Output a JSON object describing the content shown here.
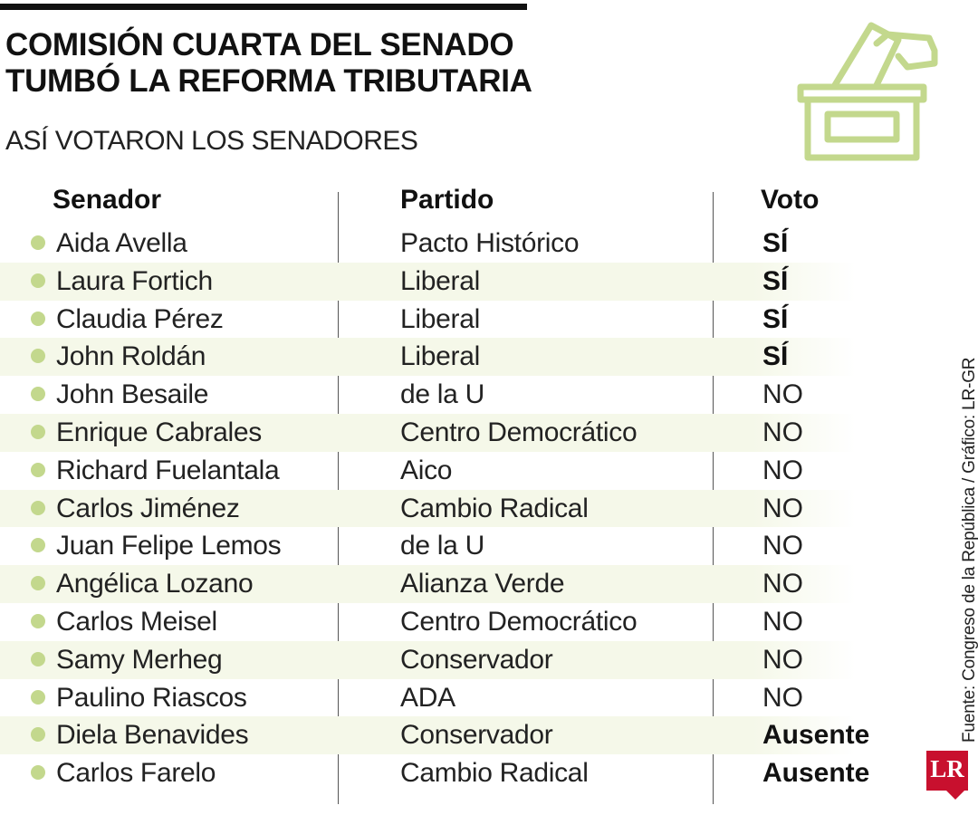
{
  "header": {
    "title_line1": "COMISIÓN CUARTA DEL SENADO",
    "title_line2": "TUMBÓ LA REFORMA TRIBUTARIA",
    "subtitle": "ASÍ VOTARON LOS SENADORES",
    "icon": "ballot-box-icon"
  },
  "colors": {
    "accent": "#c3d88d",
    "row_stripe": "#f5f8e9",
    "logo_red": "#c8102e"
  },
  "table": {
    "columns": [
      "Senador",
      "Partido",
      "Voto"
    ],
    "rows": [
      {
        "senator": "Aida Avella",
        "party": "Pacto Histórico",
        "vote": "SÍ"
      },
      {
        "senator": "Laura Fortich",
        "party": "Liberal",
        "vote": "SÍ"
      },
      {
        "senator": "Claudia Pérez",
        "party": "Liberal",
        "vote": "SÍ"
      },
      {
        "senator": "John Roldán",
        "party": "Liberal",
        "vote": "SÍ"
      },
      {
        "senator": "John Besaile",
        "party": "de la U",
        "vote": "NO"
      },
      {
        "senator": "Enrique Cabrales",
        "party": "Centro Democrático",
        "vote": "NO"
      },
      {
        "senator": "Richard Fuelantala",
        "party": "Aico",
        "vote": "NO"
      },
      {
        "senator": "Carlos Jiménez",
        "party": "Cambio Radical",
        "vote": "NO"
      },
      {
        "senator": "Juan Felipe Lemos",
        "party": "de la U",
        "vote": "NO"
      },
      {
        "senator": "Angélica Lozano",
        "party": "Alianza Verde",
        "vote": "NO"
      },
      {
        "senator": "Carlos Meisel",
        "party": "Centro Democrático",
        "vote": "NO"
      },
      {
        "senator": "Samy Merheg",
        "party": "Conservador",
        "vote": "NO"
      },
      {
        "senator": "Paulino Riascos",
        "party": "ADA",
        "vote": "NO"
      },
      {
        "senator": "Diela Benavides",
        "party": "Conservador",
        "vote": "Ausente"
      },
      {
        "senator": "Carlos Farelo",
        "party": "Cambio Radical",
        "vote": "Ausente"
      }
    ]
  },
  "footer": {
    "source": "Fuente: Congreso de la República / Gráfico: LR-GR",
    "logo_text": "LR"
  }
}
